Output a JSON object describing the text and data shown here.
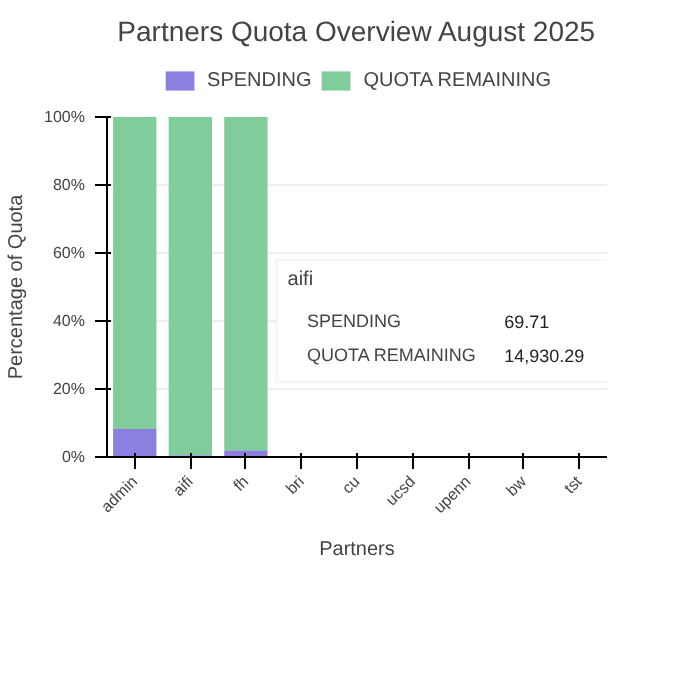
{
  "chart_data": {
    "type": "bar",
    "stacked": true,
    "title": "Partners Quota Overview August 2025",
    "xlabel": "Partners",
    "ylabel": "Percentage of Quota",
    "categories": [
      "admin",
      "aifi",
      "fh",
      "bri",
      "cu",
      "ucsd",
      "upenn",
      "bw",
      "tst"
    ],
    "series": [
      {
        "name": "SPENDING",
        "color": "#8b80e0",
        "values": [
          8.2,
          0.5,
          2,
          null,
          null,
          null,
          null,
          null,
          null
        ]
      },
      {
        "name": "QUOTA REMAINING",
        "color": "#80cc9b",
        "values": [
          91.8,
          99.5,
          98,
          null,
          null,
          null,
          null,
          null,
          null
        ]
      }
    ],
    "ylim": [
      0,
      100
    ],
    "yticks": [
      {
        "value": 0,
        "label": "0%"
      },
      {
        "value": 20,
        "label": "20%"
      },
      {
        "value": 40,
        "label": "40%"
      },
      {
        "value": 60,
        "label": "60%"
      },
      {
        "value": 80,
        "label": "80%"
      },
      {
        "value": 100,
        "label": "100%"
      }
    ],
    "grid": "y",
    "legend": "top",
    "annotations": [
      "aifi",
      "SPENDING",
      "69.71",
      "QUOTA REMAINING",
      "14,930.29"
    ]
  }
}
